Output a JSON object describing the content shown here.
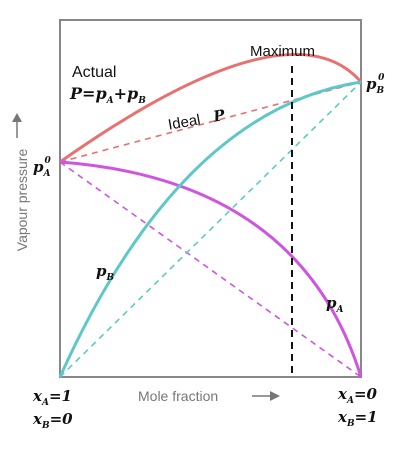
{
  "labels": {
    "actual": "Actual",
    "ideal": "Ideal",
    "maximum": "Maximum",
    "y_axis": "Vapour pressure",
    "x_axis": "Mole fraction"
  },
  "formulas": {
    "actual_eq": {
      "p1": "P",
      "eq": "=",
      "p2": "p",
      "s2": "A",
      "plus": "+",
      "p3": "p",
      "s3": "B"
    },
    "ideal_P": "P",
    "pA0": {
      "base": "p",
      "sub": "A",
      "sup": "0"
    },
    "pB0": {
      "base": "p",
      "sub": "B",
      "sup": "0"
    },
    "pA": {
      "base": "p",
      "sub": "A"
    },
    "pB": {
      "base": "p",
      "sub": "B"
    },
    "left_bottom": [
      {
        "base": "x",
        "sub": "A",
        "rhs": "=1"
      },
      {
        "base": "x",
        "sub": "B",
        "rhs": "=0"
      }
    ],
    "right_bottom": [
      {
        "base": "x",
        "sub": "A",
        "rhs": "=0"
      },
      {
        "base": "x",
        "sub": "B",
        "rhs": "=1"
      }
    ]
  },
  "colors": {
    "total_pressure": "#e8706e",
    "p_a": "#cf55e0",
    "p_b": "#5ec8c8",
    "frame": "#888888",
    "maximum_line": "#111111"
  }
}
